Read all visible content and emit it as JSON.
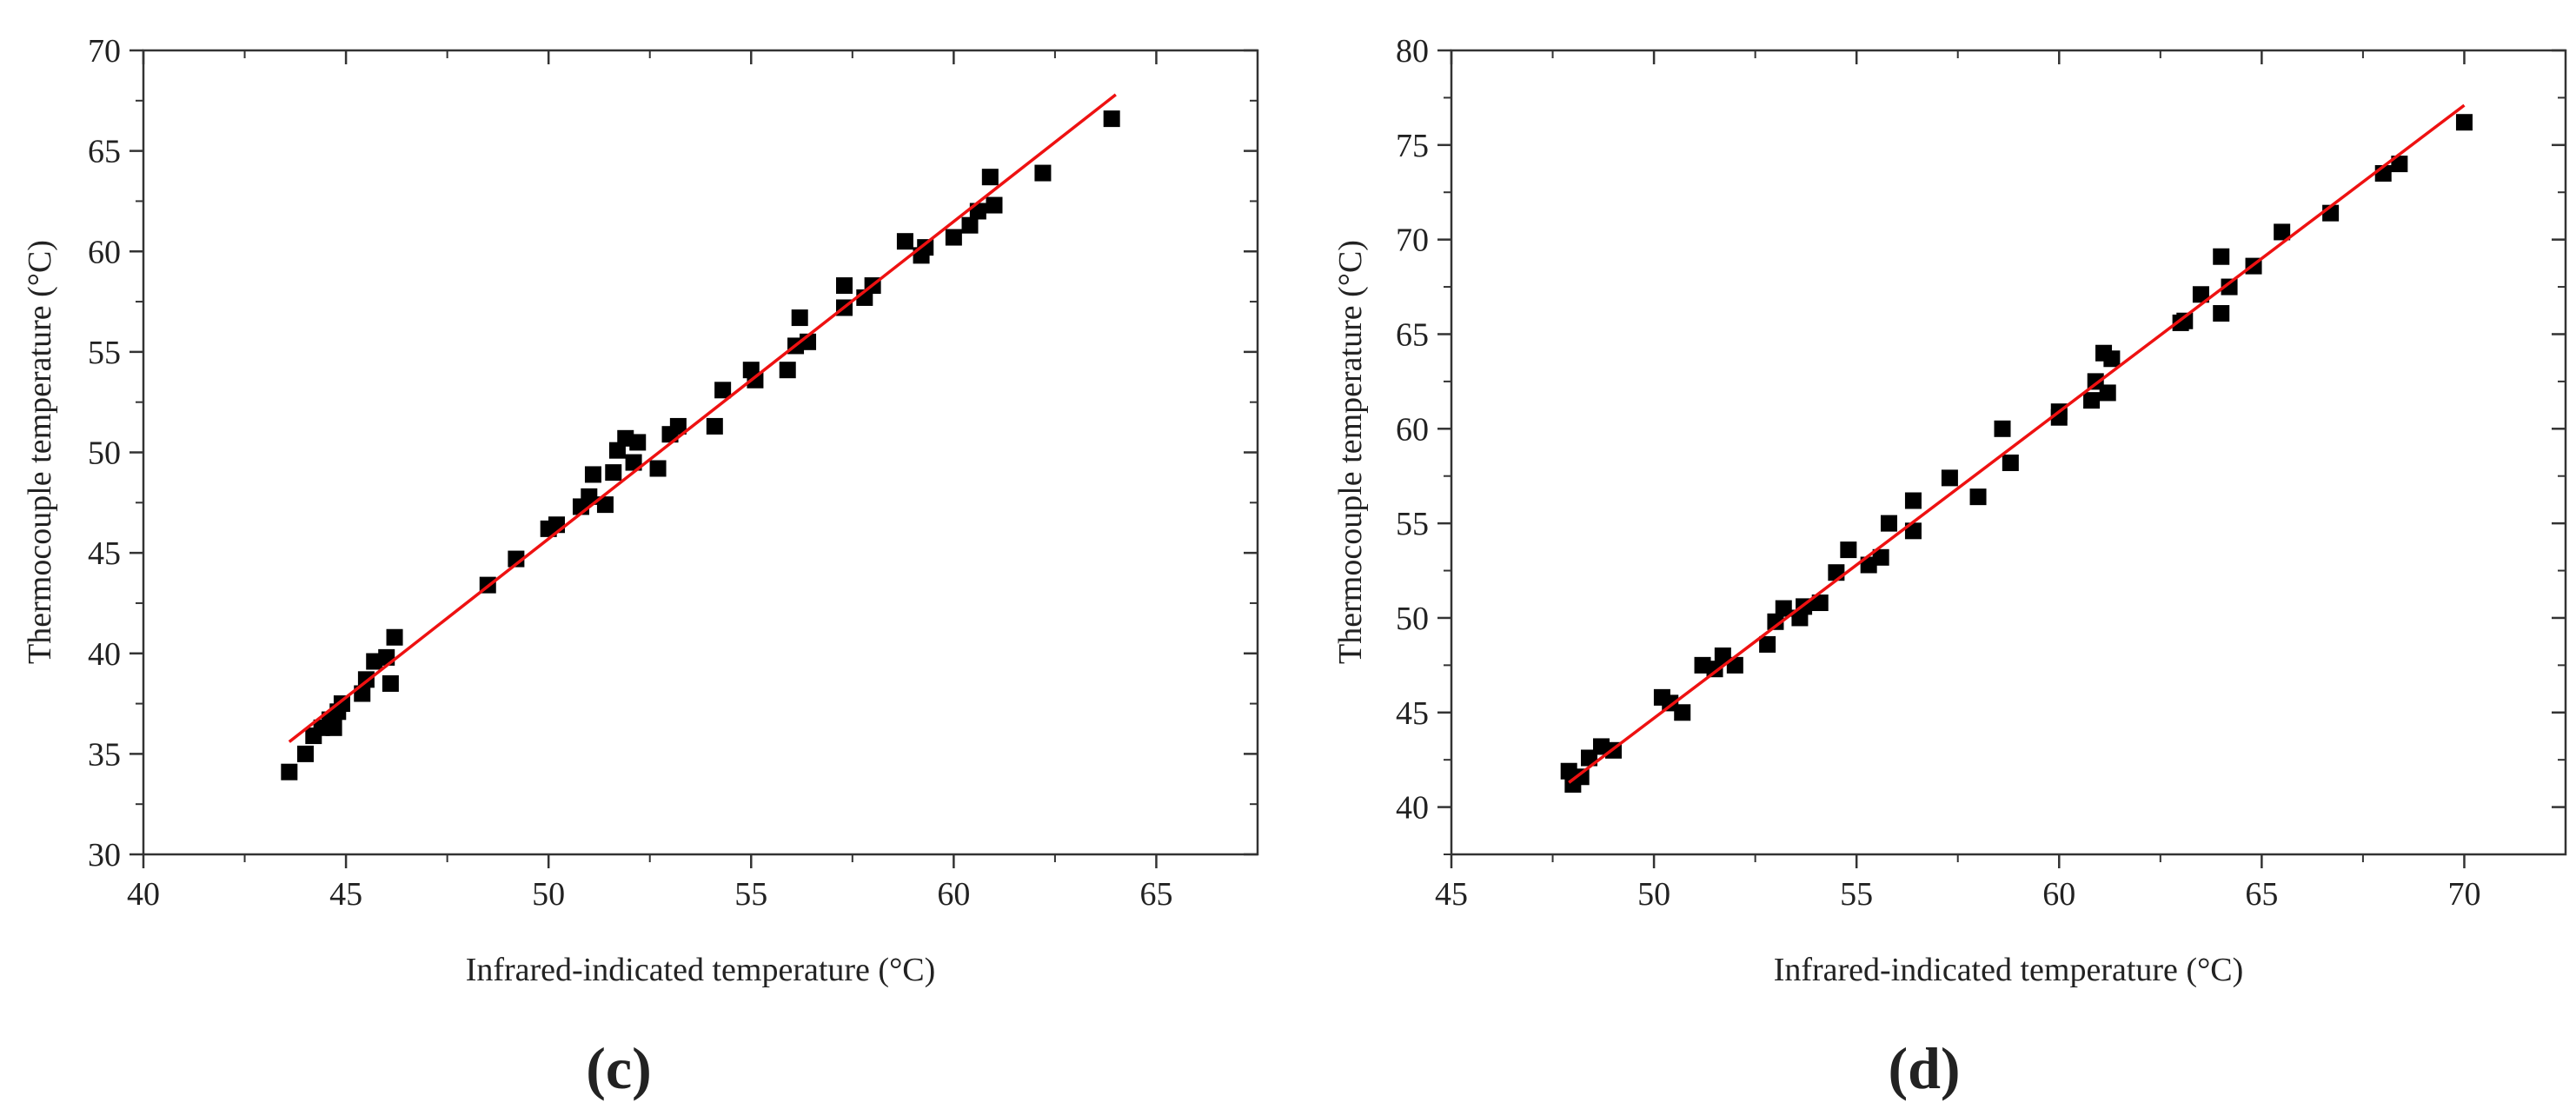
{
  "figure": {
    "panels": [
      "c",
      "d"
    ]
  },
  "chart_data": [
    {
      "type": "scatter",
      "panel_label": "(c)",
      "xlabel": "Infrared-indicated temperature (°C)",
      "ylabel": "Thermocouple temperature (°C)",
      "xlim": [
        40,
        67.5
      ],
      "ylim": [
        30,
        70
      ],
      "xticks": [
        40,
        45,
        50,
        55,
        60,
        65
      ],
      "yticks": [
        30,
        35,
        40,
        45,
        50,
        55,
        60,
        65,
        70
      ],
      "marker": "filled-square",
      "marker_color": "#000000",
      "fit_line": {
        "color": "#ee1111",
        "x": [
          43.6,
          64
        ],
        "y": [
          35.6,
          67.8
        ]
      },
      "points": [
        {
          "x": 43.6,
          "y": 34.1
        },
        {
          "x": 44.0,
          "y": 35.0
        },
        {
          "x": 44.2,
          "y": 35.9
        },
        {
          "x": 44.4,
          "y": 36.3
        },
        {
          "x": 44.6,
          "y": 36.7
        },
        {
          "x": 44.7,
          "y": 36.3
        },
        {
          "x": 44.8,
          "y": 37.1
        },
        {
          "x": 44.9,
          "y": 37.5
        },
        {
          "x": 45.4,
          "y": 38.0
        },
        {
          "x": 45.5,
          "y": 38.7
        },
        {
          "x": 45.7,
          "y": 39.6
        },
        {
          "x": 46.0,
          "y": 39.8
        },
        {
          "x": 46.1,
          "y": 38.5
        },
        {
          "x": 46.2,
          "y": 40.8
        },
        {
          "x": 48.5,
          "y": 43.4
        },
        {
          "x": 49.2,
          "y": 44.7
        },
        {
          "x": 50.0,
          "y": 46.2
        },
        {
          "x": 50.2,
          "y": 46.4
        },
        {
          "x": 50.8,
          "y": 47.3
        },
        {
          "x": 51.0,
          "y": 47.8
        },
        {
          "x": 51.1,
          "y": 48.9
        },
        {
          "x": 51.4,
          "y": 47.4
        },
        {
          "x": 51.6,
          "y": 49.0
        },
        {
          "x": 51.7,
          "y": 50.1
        },
        {
          "x": 51.9,
          "y": 50.7
        },
        {
          "x": 52.1,
          "y": 49.5
        },
        {
          "x": 52.2,
          "y": 50.5
        },
        {
          "x": 52.7,
          "y": 49.2
        },
        {
          "x": 53.0,
          "y": 50.9
        },
        {
          "x": 53.2,
          "y": 51.3
        },
        {
          "x": 54.1,
          "y": 51.3
        },
        {
          "x": 54.3,
          "y": 53.1
        },
        {
          "x": 55.0,
          "y": 54.1
        },
        {
          "x": 55.1,
          "y": 53.6
        },
        {
          "x": 55.9,
          "y": 54.1
        },
        {
          "x": 56.1,
          "y": 55.3
        },
        {
          "x": 56.2,
          "y": 56.7
        },
        {
          "x": 56.4,
          "y": 55.5
        },
        {
          "x": 57.3,
          "y": 57.2
        },
        {
          "x": 57.3,
          "y": 58.3
        },
        {
          "x": 57.8,
          "y": 57.7
        },
        {
          "x": 58.0,
          "y": 58.3
        },
        {
          "x": 58.8,
          "y": 60.5
        },
        {
          "x": 59.2,
          "y": 59.8
        },
        {
          "x": 59.3,
          "y": 60.2
        },
        {
          "x": 60.0,
          "y": 60.7
        },
        {
          "x": 60.4,
          "y": 61.3
        },
        {
          "x": 60.6,
          "y": 62.0
        },
        {
          "x": 60.9,
          "y": 63.7
        },
        {
          "x": 61.0,
          "y": 62.3
        },
        {
          "x": 62.2,
          "y": 63.9
        },
        {
          "x": 63.9,
          "y": 66.6
        }
      ]
    },
    {
      "type": "scatter",
      "panel_label": "(d)",
      "xlabel": "Infrared-indicated temperature (°C)",
      "ylabel": "Thermocouple temperature (°C)",
      "xlim": [
        45,
        72.5
      ],
      "ylim": [
        37.5,
        80
      ],
      "xticks": [
        45,
        50,
        55,
        60,
        65,
        70
      ],
      "yticks": [
        40,
        45,
        50,
        55,
        60,
        65,
        70,
        75,
        80
      ],
      "marker": "filled-square",
      "marker_color": "#000000",
      "fit_line": {
        "color": "#ee1111",
        "x": [
          47.9,
          70
        ],
        "y": [
          41.3,
          77.1
        ]
      },
      "points": [
        {
          "x": 47.9,
          "y": 41.9
        },
        {
          "x": 48.0,
          "y": 41.2
        },
        {
          "x": 48.2,
          "y": 41.6
        },
        {
          "x": 48.4,
          "y": 42.6
        },
        {
          "x": 48.7,
          "y": 43.2
        },
        {
          "x": 49.0,
          "y": 43.0
        },
        {
          "x": 50.2,
          "y": 45.8
        },
        {
          "x": 50.4,
          "y": 45.5
        },
        {
          "x": 50.7,
          "y": 45.0
        },
        {
          "x": 51.2,
          "y": 47.5
        },
        {
          "x": 51.5,
          "y": 47.3
        },
        {
          "x": 51.7,
          "y": 48.0
        },
        {
          "x": 52.0,
          "y": 47.5
        },
        {
          "x": 52.8,
          "y": 48.6
        },
        {
          "x": 53.0,
          "y": 49.8
        },
        {
          "x": 53.2,
          "y": 50.5
        },
        {
          "x": 53.6,
          "y": 50.0
        },
        {
          "x": 53.7,
          "y": 50.6
        },
        {
          "x": 54.1,
          "y": 50.8
        },
        {
          "x": 54.5,
          "y": 52.4
        },
        {
          "x": 54.8,
          "y": 53.6
        },
        {
          "x": 55.3,
          "y": 52.8
        },
        {
          "x": 55.6,
          "y": 53.2
        },
        {
          "x": 55.8,
          "y": 55.0
        },
        {
          "x": 56.4,
          "y": 56.2
        },
        {
          "x": 56.4,
          "y": 54.6
        },
        {
          "x": 57.3,
          "y": 57.4
        },
        {
          "x": 58.0,
          "y": 56.4
        },
        {
          "x": 58.6,
          "y": 60.0
        },
        {
          "x": 58.8,
          "y": 58.2
        },
        {
          "x": 60.0,
          "y": 60.9
        },
        {
          "x": 60.0,
          "y": 60.6
        },
        {
          "x": 60.8,
          "y": 61.5
        },
        {
          "x": 60.9,
          "y": 62.5
        },
        {
          "x": 61.1,
          "y": 64.0
        },
        {
          "x": 61.2,
          "y": 61.9
        },
        {
          "x": 61.3,
          "y": 63.7
        },
        {
          "x": 63.0,
          "y": 65.6
        },
        {
          "x": 63.1,
          "y": 65.7
        },
        {
          "x": 63.5,
          "y": 67.1
        },
        {
          "x": 64.0,
          "y": 69.1
        },
        {
          "x": 64.0,
          "y": 66.1
        },
        {
          "x": 64.2,
          "y": 67.5
        },
        {
          "x": 64.8,
          "y": 68.6
        },
        {
          "x": 65.5,
          "y": 70.4
        },
        {
          "x": 66.7,
          "y": 71.4
        },
        {
          "x": 68.0,
          "y": 73.5
        },
        {
          "x": 68.4,
          "y": 74.0
        },
        {
          "x": 70.0,
          "y": 76.2
        }
      ]
    }
  ]
}
